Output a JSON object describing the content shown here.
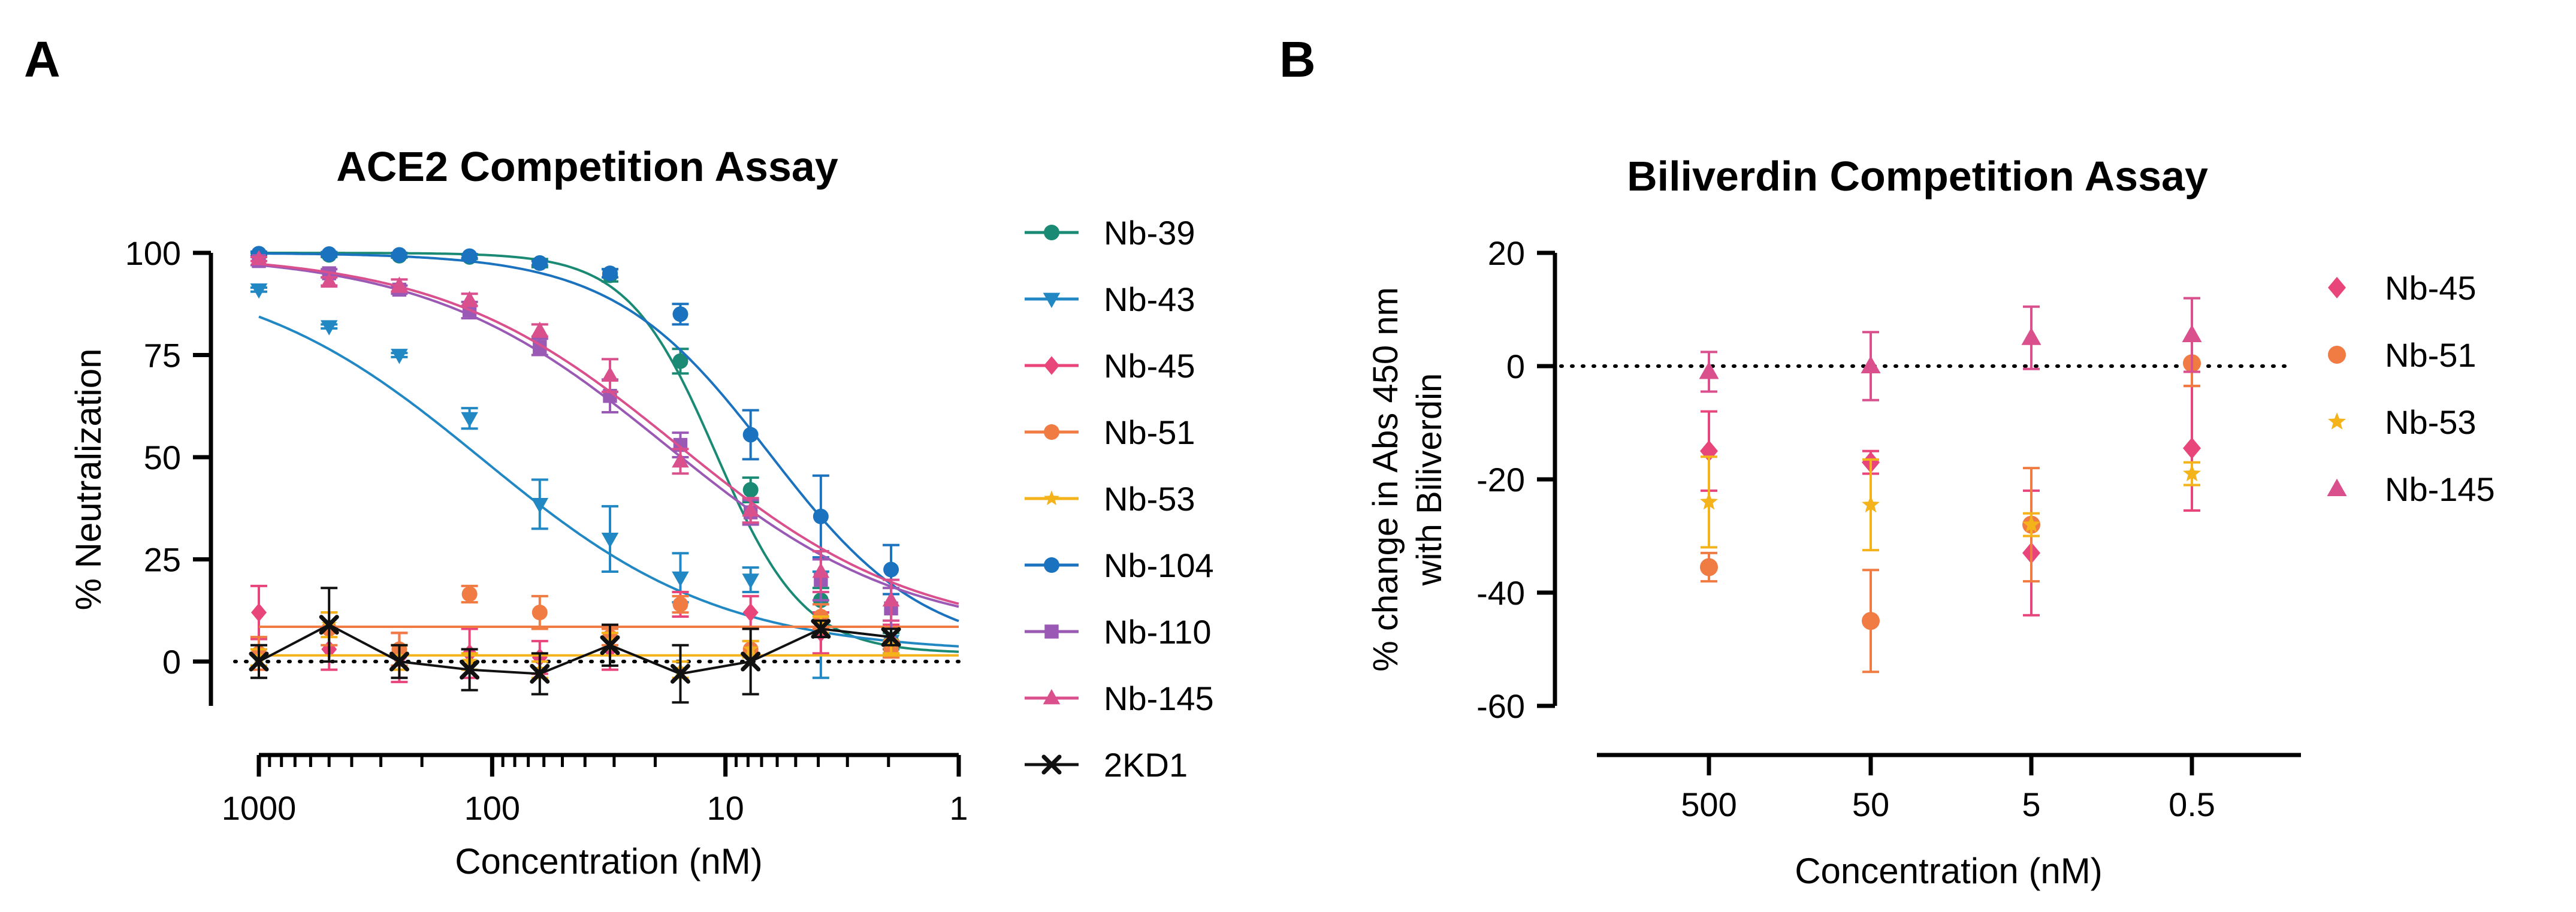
{
  "panel_labels": {
    "a": "A",
    "b": "B"
  },
  "chart_data": [
    {
      "type": "scatter",
      "panel": "A",
      "title": "ACE2 Competition Assay",
      "xlabel": "Concentration (nM)",
      "ylabel": "% Neutralization",
      "xscale": "log",
      "xaxis": "reversed",
      "xlim": [
        1000,
        1
      ],
      "ylim": [
        -10,
        100
      ],
      "xticks": [
        1000,
        100,
        10,
        1
      ],
      "xtick_labels": [
        "1000",
        "100",
        "10",
        "1"
      ],
      "yticks": [
        0,
        25,
        50,
        75,
        100
      ],
      "ytick_labels": [
        "0",
        "25",
        "50",
        "75",
        "100"
      ],
      "reference_line_y": 0,
      "x": [
        1000,
        500,
        250,
        125,
        62.5,
        31.25,
        15.6,
        7.8,
        3.9,
        1.95
      ],
      "series": [
        {
          "name": "Nb-39",
          "color": "#1b8a74",
          "marker": "circle",
          "values": [
            99.5,
            99.5,
            99.3,
            99.0,
            97.5,
            94.5,
            73.5,
            42,
            15,
            5
          ],
          "errors": [
            0.5,
            0.5,
            0.5,
            0.5,
            1,
            1.5,
            3,
            3,
            3,
            2
          ],
          "ic50": 11,
          "hill": 2.3,
          "top": 100,
          "bottom": 2
        },
        {
          "name": "Nb-43",
          "color": "#2288c4",
          "marker": "triangle-down",
          "values": [
            91,
            82,
            75,
            59.5,
            38.5,
            30,
            20.5,
            20,
            9,
            5
          ],
          "errors": [
            0.5,
            0.5,
            0.5,
            2.5,
            6,
            8,
            6,
            3,
            13,
            3
          ],
          "ic50": 110,
          "hill": 0.85,
          "top": 97,
          "bottom": 2
        },
        {
          "name": "Nb-45",
          "color": "#e8457b",
          "marker": "diamond",
          "values": [
            12,
            3,
            1,
            2,
            1,
            3,
            14,
            12,
            7,
            5
          ],
          "errors": [
            6.5,
            5,
            6,
            6,
            4,
            5,
            3,
            4,
            5,
            4
          ],
          "flat": 8.5
        },
        {
          "name": "Nb-51",
          "color": "#f07b43",
          "marker": "circle",
          "values": [
            2,
            8,
            3,
            16.5,
            12,
            6,
            14,
            3,
            11,
            3
          ],
          "errors": [
            4,
            4,
            4,
            2,
            4,
            2,
            2,
            2,
            3,
            2
          ],
          "flat": 8.5
        },
        {
          "name": "Nb-53",
          "color": "#f4b21b",
          "marker": "star",
          "values": [
            1,
            9,
            1,
            0,
            -2,
            5,
            -2,
            3,
            9,
            5
          ],
          "errors": [
            2,
            3,
            3,
            2,
            2,
            2,
            2,
            2,
            2,
            3
          ],
          "flat": 1.5
        },
        {
          "name": "Nb-104",
          "color": "#1b72bf",
          "marker": "circle",
          "values": [
            99.8,
            99.7,
            99.5,
            99.2,
            97.5,
            95,
            85,
            55.5,
            35.5,
            22.5
          ],
          "errors": [
            0.5,
            0.5,
            0.5,
            0.5,
            0.5,
            1,
            2.5,
            6,
            10,
            6
          ],
          "ic50": 6.5,
          "hill": 1.3,
          "top": 100,
          "bottom": 2
        },
        {
          "name": "Nb-110",
          "color": "#9b59b6",
          "marker": "square",
          "values": [
            98,
            95,
            91,
            86,
            77,
            65,
            53,
            36.5,
            20,
            13
          ],
          "errors": [
            1,
            1,
            1,
            2,
            2,
            4,
            3,
            3,
            5,
            5
          ],
          "ic50": 18,
          "hill": 0.85,
          "top": 100,
          "bottom": 6
        },
        {
          "name": "Nb-145",
          "color": "#d9508d",
          "marker": "triangle-up",
          "values": [
            98.5,
            93,
            92,
            88.5,
            81,
            70,
            49,
            37,
            22,
            15
          ],
          "errors": [
            0.5,
            1,
            1.5,
            1.5,
            1.5,
            4,
            3,
            3,
            5,
            5
          ],
          "ic50": 16,
          "hill": 0.85,
          "top": 100,
          "bottom": 6
        },
        {
          "name": "2KD1",
          "color": "#111111",
          "marker": "x",
          "values": [
            0,
            9,
            0,
            -2,
            -3,
            4,
            -3,
            0,
            8,
            6
          ],
          "errors": [
            4,
            9,
            4,
            5,
            5,
            5,
            7,
            8,
            2,
            2
          ],
          "flat": null
        }
      ]
    },
    {
      "type": "scatter",
      "panel": "B",
      "title": "Biliverdin Competition Assay",
      "xlabel": "Concentration (nM)",
      "ylabel_lines": [
        "% change in Abs 450 nm",
        "with Biliverdin"
      ],
      "categories": [
        "500",
        "50",
        "5",
        "0.5"
      ],
      "ylim": [
        -60,
        20
      ],
      "yticks": [
        20,
        0,
        -20,
        -40,
        -60
      ],
      "ytick_labels": [
        "20",
        "0",
        "-20",
        "-40",
        "-60"
      ],
      "reference_line_y": 0,
      "series": [
        {
          "name": "Nb-45",
          "color": "#e8457b",
          "marker": "diamond",
          "values": [
            -15,
            -17,
            -33,
            -14.5
          ],
          "errors": [
            7,
            2,
            11,
            11
          ]
        },
        {
          "name": "Nb-51",
          "color": "#f07b43",
          "marker": "circle",
          "values": [
            -35.5,
            -45,
            -28,
            0.5
          ],
          "errors": [
            2.5,
            9,
            10,
            4
          ]
        },
        {
          "name": "Nb-53",
          "color": "#f4b21b",
          "marker": "star",
          "values": [
            -24,
            -24.5,
            -28,
            -19
          ],
          "errors": [
            8,
            8,
            2,
            2
          ]
        },
        {
          "name": "Nb-145",
          "color": "#d9508d",
          "marker": "triangle-up",
          "values": [
            -1,
            0,
            5,
            5.5
          ],
          "errors": [
            3.5,
            6,
            5.5,
            6.5
          ]
        }
      ]
    }
  ]
}
